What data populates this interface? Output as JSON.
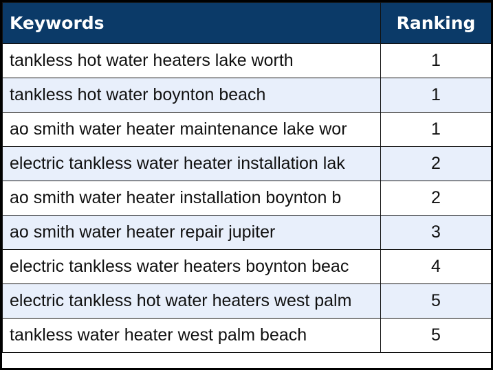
{
  "table": {
    "header": [
      "Keywords",
      "Ranking"
    ],
    "rows": [
      [
        "tankless hot water heaters lake worth",
        1
      ],
      [
        "tankless hot water boynton beach",
        1
      ],
      [
        "ao smith water heater maintenance lake wor",
        1
      ],
      [
        "electric tankless water heater installation lak",
        2
      ],
      [
        "ao smith water heater installation boynton b",
        2
      ],
      [
        "ao smith water heater repair jupiter",
        3
      ],
      [
        "electric tankless water heaters boynton beac",
        4
      ],
      [
        "electric tankless hot water heaters west palm",
        5
      ],
      [
        "tankless water heater west palm beach",
        5
      ]
    ]
  }
}
